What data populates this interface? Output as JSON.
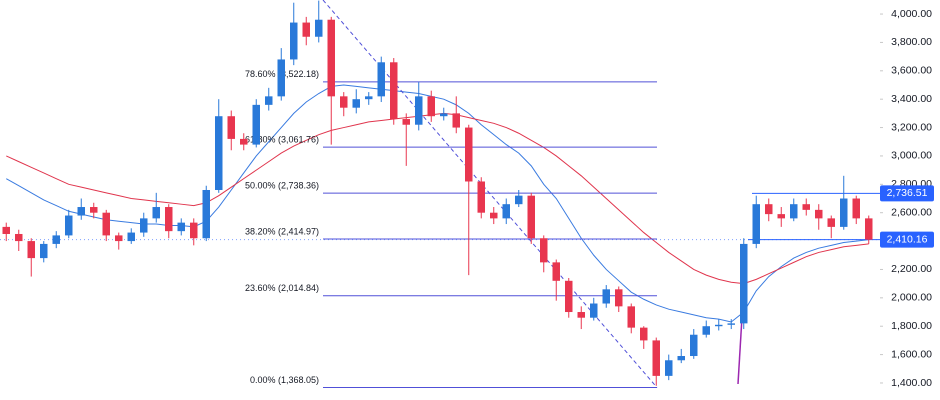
{
  "chart_data": {
    "type": "candlestick",
    "open": [
      2500,
      2450,
      2400,
      2280,
      2380,
      2440,
      2580,
      2640,
      2600,
      2440,
      2400,
      2460,
      2560,
      2640,
      2470,
      2530,
      2420,
      2760,
      3280,
      3120,
      3080,
      3360,
      3420,
      3680,
      3940,
      3840,
      3960,
      3420,
      3340,
      3400,
      3420,
      3660,
      3260,
      3220,
      3420,
      3280,
      3300,
      3200,
      2820,
      2600,
      2560,
      2660,
      2720,
      2420,
      2250,
      2120,
      1900,
      1860,
      1960,
      2060,
      1940,
      1790,
      1700,
      1450,
      1560,
      1590,
      1740,
      1800,
      1810,
      1820,
      2380,
      2660,
      2590,
      2560,
      2660,
      2620,
      2560,
      2500,
      2700,
      2560
    ],
    "high": [
      2530,
      2480,
      2420,
      2400,
      2470,
      2620,
      2700,
      2670,
      2620,
      2460,
      2490,
      2600,
      2740,
      2660,
      2560,
      2560,
      2790,
      3400,
      3320,
      3160,
      3400,
      3480,
      3760,
      4080,
      3980,
      4095,
      3980,
      3450,
      3470,
      3450,
      3700,
      3690,
      3300,
      3520,
      3460,
      3340,
      3420,
      3220,
      2850,
      2640,
      2700,
      2760,
      2740,
      2440,
      2270,
      2140,
      1940,
      2000,
      2090,
      2080,
      1960,
      1800,
      1720,
      1600,
      1640,
      1780,
      1840,
      1850,
      1850,
      2420,
      2720,
      2700,
      2640,
      2700,
      2700,
      2660,
      2580,
      2860,
      2720,
      2580
    ],
    "low": [
      2400,
      2330,
      2150,
      2250,
      2350,
      2420,
      2550,
      2560,
      2400,
      2340,
      2380,
      2430,
      2530,
      2420,
      2440,
      2370,
      2400,
      2740,
      3040,
      3040,
      3060,
      3320,
      3390,
      3640,
      3780,
      3800,
      3080,
      3280,
      3300,
      3360,
      3380,
      3220,
      2930,
      3180,
      3240,
      3250,
      3160,
      2160,
      2560,
      2520,
      2520,
      2640,
      2380,
      2180,
      1980,
      1860,
      1780,
      1840,
      1930,
      1900,
      1750,
      1640,
      1380,
      1420,
      1540,
      1570,
      1720,
      1770,
      1780,
      1780,
      2350,
      2540,
      2500,
      2540,
      2580,
      2480,
      2420,
      2480,
      2520,
      2380
    ],
    "close": [
      2450,
      2400,
      2280,
      2380,
      2440,
      2580,
      2640,
      2600,
      2440,
      2400,
      2460,
      2560,
      2640,
      2470,
      2530,
      2420,
      2760,
      3280,
      3120,
      3080,
      3360,
      3420,
      3680,
      3940,
      3840,
      3960,
      3420,
      3340,
      3400,
      3420,
      3660,
      3260,
      3220,
      3420,
      3280,
      3300,
      3200,
      2820,
      2600,
      2560,
      2660,
      2720,
      2420,
      2250,
      2120,
      1900,
      1860,
      1960,
      2060,
      1940,
      1790,
      1700,
      1450,
      1560,
      1590,
      1740,
      1800,
      1810,
      1820,
      2380,
      2660,
      2590,
      2560,
      2660,
      2620,
      2560,
      2500,
      2700,
      2560,
      2410
    ],
    "up_color": "#2979d9",
    "down_color": "#e8364f",
    "ylim": [
      1280,
      4099
    ],
    "yticks": [
      {
        "value": 1400,
        "label": "1,400.00"
      },
      {
        "value": 1600,
        "label": "1,600.00"
      },
      {
        "value": 1800,
        "label": "1,800.00"
      },
      {
        "value": 2000,
        "label": "2,000.00"
      },
      {
        "value": 2200,
        "label": "2,200.00"
      },
      {
        "value": 2400,
        "label": "2,400.00"
      },
      {
        "value": 2600,
        "label": "2,600.00"
      },
      {
        "value": 2800,
        "label": "2,800.00"
      },
      {
        "value": 3000,
        "label": "3,000.00"
      },
      {
        "value": 3200,
        "label": "3,200.00"
      },
      {
        "value": 3400,
        "label": "3,400.00"
      },
      {
        "value": 3600,
        "label": "3,600.00"
      },
      {
        "value": 3800,
        "label": "3,800.00"
      },
      {
        "value": 4000,
        "label": "4,000.00"
      }
    ],
    "moving_averages": [
      {
        "color": "#3a7be0",
        "values": [
          2840,
          2790,
          2740,
          2690,
          2650,
          2610,
          2590,
          2570,
          2550,
          2540,
          2530,
          2520,
          2520,
          2510,
          2510,
          2500,
          2540,
          2640,
          2760,
          2880,
          3000,
          3100,
          3200,
          3300,
          3380,
          3440,
          3490,
          3500,
          3490,
          3480,
          3470,
          3460,
          3450,
          3440,
          3420,
          3400,
          3360,
          3300,
          3220,
          3150,
          3080,
          3020,
          2930,
          2800,
          2700,
          2560,
          2420,
          2300,
          2200,
          2120,
          2040,
          1990,
          1950,
          1920,
          1900,
          1880,
          1860,
          1850,
          1830,
          1900,
          2050,
          2150,
          2220,
          2280,
          2320,
          2350,
          2370,
          2390,
          2400,
          2410
        ]
      },
      {
        "color": "#e0354d",
        "values": [
          3000,
          2960,
          2920,
          2880,
          2840,
          2800,
          2780,
          2760,
          2740,
          2720,
          2700,
          2690,
          2680,
          2670,
          2660,
          2650,
          2670,
          2720,
          2780,
          2840,
          2900,
          2960,
          3020,
          3070,
          3110,
          3150,
          3180,
          3200,
          3220,
          3240,
          3250,
          3260,
          3270,
          3280,
          3290,
          3300,
          3290,
          3270,
          3250,
          3230,
          3200,
          3160,
          3110,
          3060,
          3000,
          2930,
          2860,
          2780,
          2700,
          2620,
          2540,
          2460,
          2390,
          2320,
          2260,
          2200,
          2160,
          2130,
          2110,
          2100,
          2130,
          2170,
          2210,
          2250,
          2290,
          2320,
          2340,
          2360,
          2370,
          2380
        ]
      }
    ],
    "fib_levels": [
      {
        "value": 3522.18,
        "label": "78.60% (3,522.18)"
      },
      {
        "value": 3061.76,
        "label": "61.80% (3,061.76)"
      },
      {
        "value": 2738.36,
        "label": "50.00% (2,738.36)"
      },
      {
        "value": 2414.97,
        "label": "38.20% (2,414.97)"
      },
      {
        "value": 2014.84,
        "label": "23.60% (2,014.84)"
      },
      {
        "value": 1368.05,
        "label": "0.00% (1,368.05)"
      }
    ],
    "fib_color": "#5050d8",
    "price_lines": [
      {
        "value": 2736.51,
        "label": "2,736.51"
      },
      {
        "value": 2410.16,
        "label": "2,410.16"
      }
    ],
    "price_line_color": "#2962ff"
  }
}
